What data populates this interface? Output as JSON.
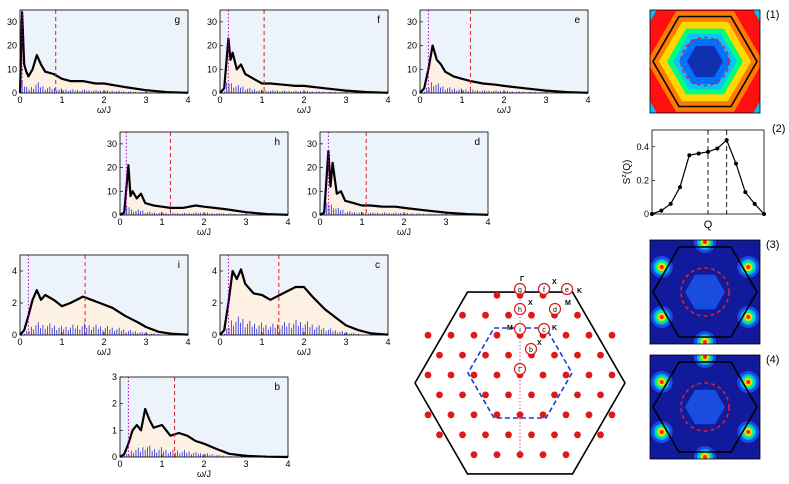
{
  "figure": {
    "xlabel": "ω/J",
    "colors": {
      "panel_bg": "#edf3fb",
      "fill": "#fdf1e3",
      "curve": "#000000",
      "sticks": "#1f2bdc",
      "dot": "#c000c0",
      "dash": "#e0202a"
    }
  },
  "chart_data": [
    {
      "type": "line",
      "label": "g",
      "xlim": [
        0,
        4
      ],
      "ylim": [
        0,
        35
      ],
      "yticks": [
        0,
        10,
        20,
        30
      ],
      "xticks": [
        0,
        1,
        2,
        3,
        4
      ],
      "marker_dotted": 0.05,
      "marker_dashed": 0.85,
      "x": [
        0,
        0.05,
        0.1,
        0.15,
        0.2,
        0.3,
        0.4,
        0.5,
        0.6,
        0.8,
        1.0,
        1.2,
        1.5,
        1.8,
        2.0,
        2.5,
        3.0,
        3.5,
        4.0
      ],
      "y": [
        0,
        34,
        12,
        9,
        7,
        10,
        16,
        12,
        9,
        8,
        6,
        5,
        5,
        4,
        4,
        2.5,
        1.2,
        0.4,
        0.1
      ]
    },
    {
      "type": "line",
      "label": "f",
      "xlim": [
        0,
        4
      ],
      "ylim": [
        0,
        35
      ],
      "yticks": [
        0,
        10,
        20,
        30
      ],
      "xticks": [
        0,
        1,
        2,
        3,
        4
      ],
      "marker_dotted": 0.2,
      "marker_dashed": 1.05,
      "x": [
        0,
        0.1,
        0.2,
        0.25,
        0.3,
        0.4,
        0.5,
        0.6,
        0.8,
        1.0,
        1.2,
        1.5,
        1.8,
        2.0,
        2.5,
        3.0,
        3.5,
        4.0
      ],
      "y": [
        0,
        2,
        23,
        14,
        17,
        10,
        12,
        8,
        6,
        4,
        4,
        3.5,
        3,
        3,
        2,
        1,
        0.4,
        0.1
      ]
    },
    {
      "type": "line",
      "label": "e",
      "xlim": [
        0,
        4
      ],
      "ylim": [
        0,
        35
      ],
      "yticks": [
        0,
        10,
        20,
        30
      ],
      "xticks": [
        0,
        1,
        2,
        3,
        4
      ],
      "marker_dotted": 0.2,
      "marker_dashed": 1.2,
      "x": [
        0,
        0.1,
        0.2,
        0.3,
        0.4,
        0.5,
        0.6,
        0.8,
        1.0,
        1.2,
        1.5,
        1.8,
        2.0,
        2.5,
        3.0,
        3.5,
        4.0
      ],
      "y": [
        0,
        2,
        10,
        20,
        14,
        12,
        9,
        7,
        6,
        5,
        4,
        3.5,
        3,
        2,
        1,
        0.4,
        0.1
      ]
    },
    {
      "type": "line",
      "label": "h",
      "xlim": [
        0,
        4
      ],
      "ylim": [
        0,
        35
      ],
      "yticks": [
        0,
        10,
        20,
        30
      ],
      "xticks": [
        0,
        1,
        2,
        3,
        4
      ],
      "marker_dotted": 0.15,
      "marker_dashed": 1.2,
      "x": [
        0,
        0.1,
        0.2,
        0.25,
        0.3,
        0.4,
        0.5,
        0.6,
        0.8,
        1.0,
        1.2,
        1.5,
        1.8,
        2.0,
        2.5,
        3.0,
        3.5,
        4.0
      ],
      "y": [
        0,
        1,
        21,
        8,
        10,
        7,
        9,
        5,
        4,
        3.5,
        3,
        3,
        4,
        3.5,
        2.5,
        1.2,
        0.4,
        0.1
      ]
    },
    {
      "type": "line",
      "label": "d",
      "xlim": [
        0,
        4
      ],
      "ylim": [
        0,
        35
      ],
      "yticks": [
        0,
        10,
        20,
        30
      ],
      "xticks": [
        0,
        1,
        2,
        3,
        4
      ],
      "marker_dotted": 0.2,
      "marker_dashed": 1.1,
      "x": [
        0,
        0.1,
        0.2,
        0.25,
        0.3,
        0.4,
        0.5,
        0.6,
        0.8,
        1.0,
        1.2,
        1.5,
        1.8,
        2.0,
        2.5,
        3.0,
        3.5,
        4.0
      ],
      "y": [
        0,
        1,
        27,
        12,
        22,
        9,
        10,
        6,
        5,
        4,
        4,
        3.5,
        3.5,
        3,
        2,
        1,
        0.4,
        0.1
      ]
    },
    {
      "type": "line",
      "label": "i",
      "xlim": [
        0,
        4
      ],
      "ylim": [
        0,
        5
      ],
      "yticks": [
        0,
        2,
        4
      ],
      "xticks": [
        0,
        1,
        2,
        3,
        4
      ],
      "marker_dotted": 0.2,
      "marker_dashed": 1.55,
      "x": [
        0,
        0.1,
        0.2,
        0.3,
        0.4,
        0.5,
        0.6,
        0.8,
        1.0,
        1.2,
        1.5,
        1.7,
        1.9,
        2.2,
        2.5,
        2.8,
        3.0,
        3.3,
        3.6,
        4.0
      ],
      "y": [
        0,
        0.3,
        1.2,
        2.2,
        2.8,
        2.2,
        2.5,
        2.2,
        1.8,
        2.0,
        2.4,
        2.2,
        2.0,
        1.7,
        1.2,
        0.8,
        0.5,
        0.2,
        0.08,
        0.02
      ]
    },
    {
      "type": "line",
      "label": "c",
      "xlim": [
        0,
        4
      ],
      "ylim": [
        0,
        5
      ],
      "yticks": [
        0,
        2,
        4
      ],
      "xticks": [
        0,
        1,
        2,
        3,
        4
      ],
      "marker_dotted": 0.2,
      "marker_dashed": 1.4,
      "x": [
        0,
        0.1,
        0.2,
        0.3,
        0.4,
        0.5,
        0.6,
        0.8,
        1.0,
        1.2,
        1.5,
        1.8,
        2.0,
        2.2,
        2.5,
        2.8,
        3.0,
        3.3,
        3.6,
        4.0
      ],
      "y": [
        0,
        0.3,
        2.0,
        4.0,
        3.5,
        4.1,
        3.2,
        2.6,
        2.5,
        2.2,
        2.6,
        3.0,
        3.0,
        2.4,
        1.6,
        1.0,
        0.6,
        0.3,
        0.1,
        0.02
      ]
    },
    {
      "type": "line",
      "label": "b",
      "xlim": [
        0,
        4
      ],
      "ylim": [
        0,
        3
      ],
      "yticks": [
        0,
        1,
        2,
        3
      ],
      "xticks": [
        0,
        1,
        2,
        3,
        4
      ],
      "marker_dotted": 0.2,
      "marker_dashed": 1.3,
      "x": [
        0,
        0.1,
        0.2,
        0.3,
        0.4,
        0.5,
        0.6,
        0.7,
        0.8,
        1.0,
        1.2,
        1.4,
        1.6,
        1.8,
        2.0,
        2.3,
        2.6,
        3.0,
        3.5,
        4.0
      ],
      "y": [
        0,
        0.1,
        0.5,
        1.0,
        1.2,
        1.0,
        1.8,
        1.4,
        1.1,
        1.2,
        0.8,
        0.9,
        0.8,
        0.6,
        0.5,
        0.3,
        0.12,
        0.04,
        0.01,
        0.0
      ]
    },
    {
      "type": "line",
      "label": "(2)",
      "ylabel": "S^z(Q)",
      "xlabel": "Q",
      "ylim": [
        0,
        0.5
      ],
      "yticks": [
        0,
        0.2,
        0.4
      ],
      "x": [
        0,
        1,
        2,
        3,
        4,
        5,
        6,
        7,
        8,
        9,
        10,
        11,
        12
      ],
      "y": [
        0,
        0.02,
        0.06,
        0.16,
        0.35,
        0.36,
        0.37,
        0.39,
        0.44,
        0.3,
        0.13,
        0.06,
        0.0
      ],
      "dashed_x": [
        6,
        8
      ]
    }
  ],
  "contours": [
    {
      "label": "(1)",
      "colors": [
        "#ff1010",
        "#ff7a00",
        "#ffd800",
        "#00ff7a",
        "#00c8ff",
        "#0070ff",
        "#1030b0"
      ]
    },
    {
      "label": "(3)",
      "colors": [
        "#101a9a",
        "#1a4ce0",
        "#00b0ff",
        "#00ff70",
        "#ffd800",
        "#ff2010"
      ]
    },
    {
      "label": "(4)",
      "colors": [
        "#101a9a",
        "#1a4ce0",
        "#00b0ff",
        "#00ff70",
        "#ffd800",
        "#ff2010"
      ]
    }
  ],
  "lattice": {
    "labels": [
      {
        "id": "g",
        "text": "g"
      },
      {
        "id": "gamma1",
        "text": "Γ"
      },
      {
        "id": "f",
        "text": "f"
      },
      {
        "id": "X1",
        "text": "X"
      },
      {
        "id": "e",
        "text": "e"
      },
      {
        "id": "K1",
        "text": "K"
      },
      {
        "id": "h",
        "text": "h"
      },
      {
        "id": "X2",
        "text": "X"
      },
      {
        "id": "d",
        "text": "d"
      },
      {
        "id": "M1",
        "text": "M"
      },
      {
        "id": "M2",
        "text": "M"
      },
      {
        "id": "i",
        "text": "i"
      },
      {
        "id": "c",
        "text": "c"
      },
      {
        "id": "K2",
        "text": "K"
      },
      {
        "id": "b",
        "text": "b"
      },
      {
        "id": "X3",
        "text": "X"
      },
      {
        "id": "gamma2",
        "text": "Γ"
      }
    ]
  }
}
